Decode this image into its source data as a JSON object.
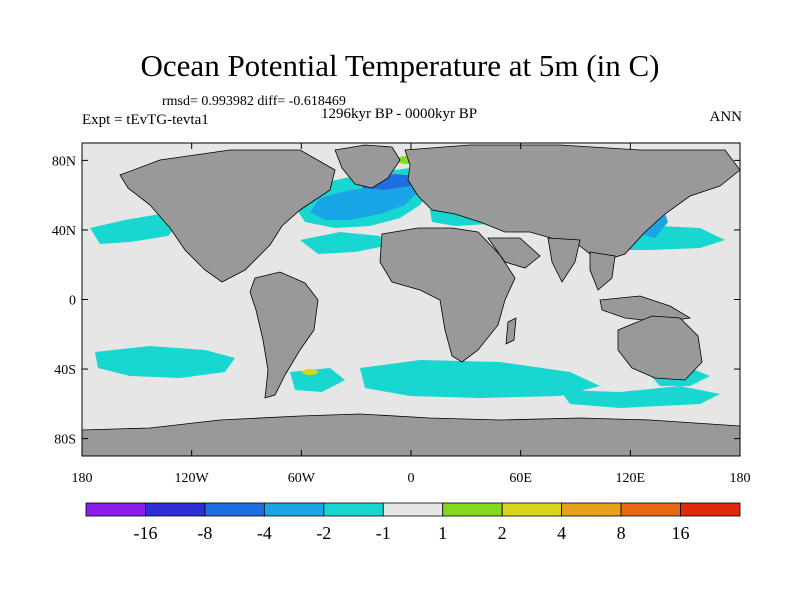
{
  "chart_data": {
    "type": "heatmap",
    "title": "Ocean Potential Temperature at 5m (in C)",
    "stats_line": "rmsd= 0.993982 diff= -0.618469",
    "left_label": "Expt = tEvTG-tevta1",
    "center_label": "1296kyr BP - 0000kyr BP",
    "right_label": "ANN",
    "projection": "cylindrical equidistant",
    "xlim": [
      -180,
      180
    ],
    "ylim": [
      -90,
      90
    ],
    "x_ticks": [
      "180",
      "120W",
      "60W",
      "0",
      "60E",
      "120E",
      "180"
    ],
    "y_ticks": [
      "80N",
      "40N",
      "0",
      "40S",
      "80S"
    ],
    "colorbar": {
      "boundaries": [
        "-16",
        "-8",
        "-4",
        "-2",
        "-1",
        "1",
        "2",
        "4",
        "8",
        "16"
      ],
      "colors": [
        "#8a1ee8",
        "#2f2fd8",
        "#1f6ee0",
        "#1aa6e6",
        "#18d6d0",
        "#e6e6e6",
        "#86d81a",
        "#d8d61a",
        "#e6a21a",
        "#e66a14",
        "#e02a10"
      ]
    },
    "colors": {
      "land": "#999999",
      "neutral_ocean": "#e6e6e6",
      "cool_light": "#18d6d0",
      "cool_mid": "#1aa6e6",
      "cool_strong": "#1f6ee0",
      "warm_light": "#86d81a",
      "warm_mid": "#d8d61a"
    }
  }
}
